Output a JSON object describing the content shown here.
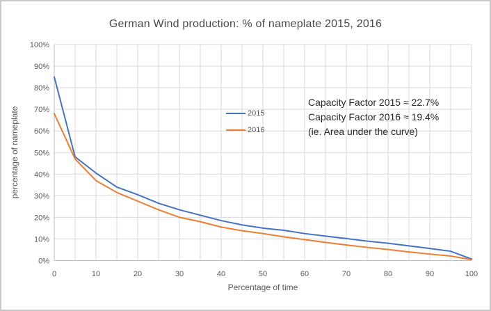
{
  "title": "German Wind production: % of nameplate 2015, 2016",
  "colors": {
    "series_2015": "#4472C4",
    "series_2016": "#ED7D31",
    "gridline": "#D9D9D9",
    "axis_line": "#BFBFBF",
    "tick_text": "#595959",
    "title_text": "#4a4a4a",
    "annotation_text": "#262626",
    "frame_border": "#C8C8C8"
  },
  "chart_data": {
    "type": "line",
    "title": "German Wind production: % of nameplate 2015, 2016",
    "xlabel": "Percentage of time",
    "ylabel": "percentage of nameplate",
    "xlim": [
      0,
      100
    ],
    "ylim": [
      0,
      100
    ],
    "x_ticks": [
      0,
      10,
      20,
      30,
      40,
      50,
      60,
      70,
      80,
      90,
      100
    ],
    "y_ticks": [
      0,
      10,
      20,
      30,
      40,
      50,
      60,
      70,
      80,
      90,
      100
    ],
    "y_tick_suffix": "%",
    "x_minor_grid_step": 5,
    "grid": true,
    "legend_position": "inside-center-left",
    "x": [
      0,
      5,
      10,
      15,
      20,
      25,
      30,
      35,
      40,
      45,
      50,
      55,
      60,
      65,
      70,
      75,
      80,
      85,
      90,
      95,
      100
    ],
    "series": [
      {
        "name": "2015",
        "color": "#4472C4",
        "values": [
          85,
          48,
          40.5,
          34,
          30.5,
          26.5,
          23.5,
          21,
          18.5,
          16.5,
          15,
          14,
          12.5,
          11.3,
          10.2,
          9,
          8,
          6.8,
          5.6,
          4.3,
          0.7
        ]
      },
      {
        "name": "2016",
        "color": "#ED7D31",
        "values": [
          68,
          47,
          37,
          31.5,
          27.5,
          23.5,
          20,
          18,
          15.5,
          13.8,
          12.5,
          11,
          9.7,
          8.4,
          7.2,
          6.1,
          5.1,
          4,
          3,
          2.1,
          0.4
        ]
      }
    ],
    "annotation": {
      "lines": [
        "Capacity Factor 2015 ≈ 22.7%",
        "Capacity Factor 2016 ≈ 19.4%",
        "(ie. Area under the curve)"
      ]
    }
  }
}
